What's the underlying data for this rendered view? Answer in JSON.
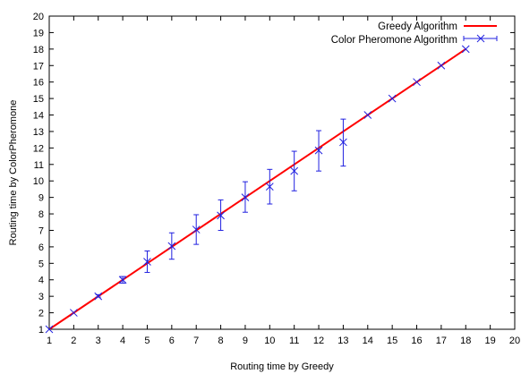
{
  "chart_data": {
    "type": "line",
    "xlabel": "Routing time by Greedy",
    "ylabel": "Routing time by ColorPheromone",
    "xlim": [
      1,
      20
    ],
    "ylim": [
      1,
      20
    ],
    "x_ticks": [
      1,
      2,
      3,
      4,
      5,
      6,
      7,
      8,
      9,
      10,
      11,
      12,
      13,
      14,
      15,
      16,
      17,
      18,
      19,
      20
    ],
    "y_ticks": [
      1,
      2,
      3,
      4,
      5,
      6,
      7,
      8,
      9,
      10,
      11,
      12,
      13,
      14,
      15,
      16,
      17,
      18,
      19,
      20
    ],
    "grid": false,
    "legend": "top-right",
    "series": [
      {
        "name": "Greedy Algorithm",
        "style": "line",
        "color": "#ff0000",
        "x": [
          1,
          18
        ],
        "y": [
          1,
          18
        ]
      },
      {
        "name": "Color Pheromone Algorithm",
        "style": "points-errorbars",
        "color": "#2020e0",
        "x": [
          1,
          2,
          3,
          4,
          5,
          6,
          7,
          8,
          9,
          10,
          11,
          12,
          13,
          14,
          15,
          16,
          17,
          18
        ],
        "y": [
          1,
          2,
          3,
          4,
          5.1,
          6.05,
          7.05,
          7.9,
          9.0,
          9.65,
          10.6,
          11.85,
          12.35,
          14,
          15,
          16,
          17,
          18
        ],
        "ylow": [
          1,
          2,
          2.95,
          3.8,
          4.45,
          5.25,
          6.15,
          7.0,
          8.1,
          8.6,
          9.4,
          10.6,
          10.9,
          14,
          15,
          16,
          17,
          18
        ],
        "yhigh": [
          1,
          2,
          3.1,
          4.2,
          5.75,
          6.85,
          7.95,
          8.85,
          9.95,
          10.7,
          11.8,
          13.05,
          13.75,
          14,
          15,
          16,
          17,
          18
        ]
      }
    ]
  }
}
